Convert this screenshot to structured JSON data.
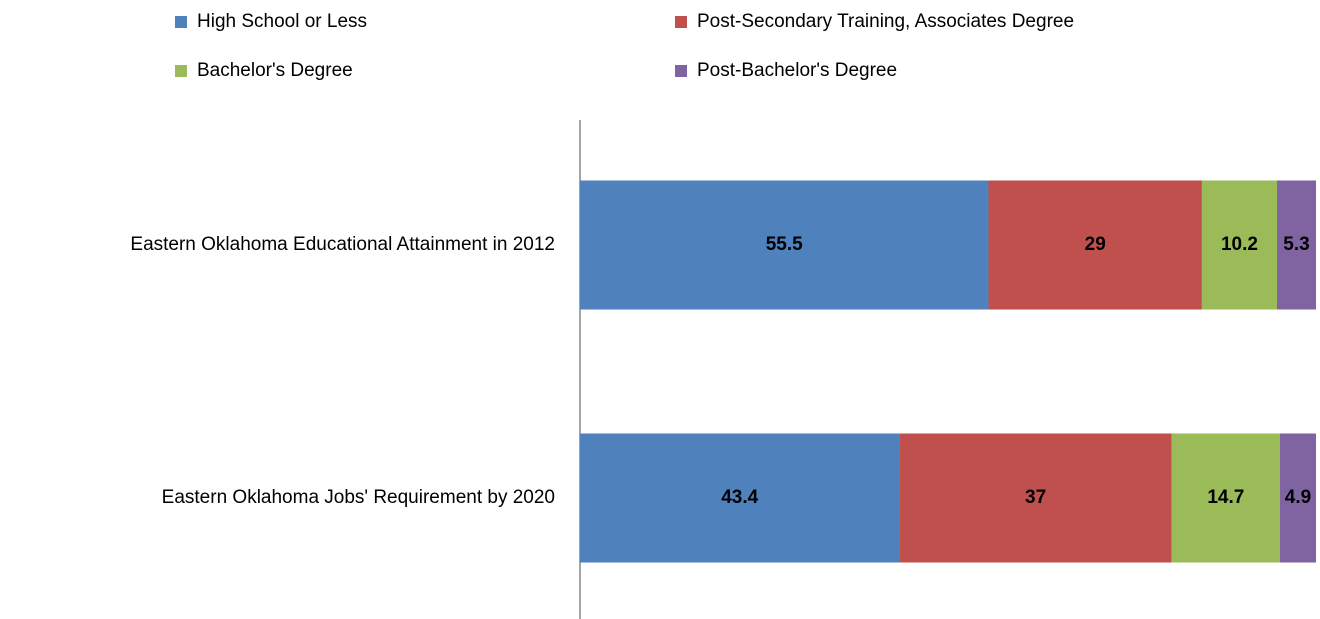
{
  "chart_data": {
    "type": "bar",
    "orientation": "horizontal",
    "stacked": true,
    "categories": [
      "Eastern Oklahoma Educational Attainment in 2012",
      "Eastern Oklahoma Jobs' Requirement by 2020"
    ],
    "series": [
      {
        "name": "High School or Less",
        "color": "#4f81bd",
        "values": [
          55.5,
          43.4
        ]
      },
      {
        "name": "Post-Secondary Training, Associates Degree",
        "color": "#c0504d",
        "values": [
          29,
          37
        ]
      },
      {
        "name": "Bachelor's Degree",
        "color": "#9bbb59",
        "values": [
          10.2,
          14.7
        ]
      },
      {
        "name": "Post-Bachelor's Degree",
        "color": "#8064a2",
        "values": [
          5.3,
          4.9
        ]
      }
    ],
    "xlim": [
      0,
      100
    ],
    "legend": "top",
    "grid": false
  }
}
